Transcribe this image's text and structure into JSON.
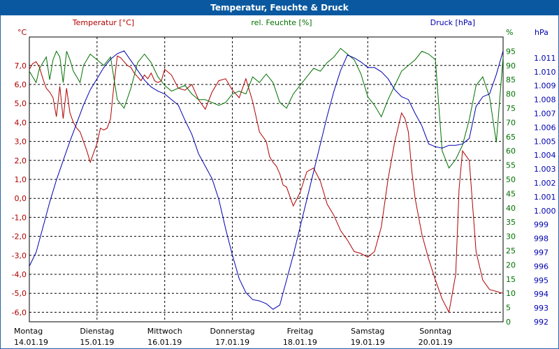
{
  "window": {
    "title": "Temperatur, Feuchte & Druck"
  },
  "chart_data": {
    "type": "line",
    "title": "Temperatur, Feuchte & Druck",
    "colors": {
      "temperature": "#b00000",
      "humidity": "#007000",
      "pressure": "#0000b0",
      "grid": "#000000"
    },
    "axes": {
      "temperature": {
        "unit": "°C",
        "label": "Temperatur [°C]",
        "ylim": [
          -6.5,
          8.5
        ],
        "ticks": [
          "7,0",
          "6,0",
          "5,0",
          "4,0",
          "3,0",
          "2,0",
          "1,0",
          "0,0",
          "-1,0",
          "-2,0",
          "-3,0",
          "-4,0",
          "-5,0",
          "-6,0"
        ],
        "tick_values": [
          7,
          6,
          5,
          4,
          3,
          2,
          1,
          0,
          -1,
          -2,
          -3,
          -4,
          -5,
          -6
        ]
      },
      "humidity": {
        "unit": "%",
        "label": "rel. Feuchte [%]",
        "ylim": [
          0,
          100
        ],
        "ticks": [
          "95",
          "90",
          "85",
          "80",
          "75",
          "70",
          "65",
          "60",
          "55",
          "50",
          "45",
          "40",
          "35",
          "30",
          "25",
          "20",
          "15",
          "10",
          "5",
          "0"
        ],
        "tick_values": [
          95,
          90,
          85,
          80,
          75,
          70,
          65,
          60,
          55,
          50,
          45,
          40,
          35,
          30,
          25,
          20,
          15,
          10,
          5,
          0
        ]
      },
      "pressure": {
        "unit": "hPa",
        "label": "Druck [hPa]",
        "ylim": [
          992,
          1012.5
        ],
        "ticks": [
          "1.011",
          "1.010",
          "1.009",
          "1.008",
          "1.007",
          "1.006",
          "1.005",
          "1.004",
          "1.003",
          "1.002",
          "1.001",
          "1.000",
          "999",
          "998",
          "997",
          "996",
          "995",
          "994",
          "993",
          "992"
        ],
        "tick_values": [
          1011,
          1010,
          1009,
          1008,
          1007,
          1006,
          1005,
          1004,
          1003,
          1002,
          1001,
          1000,
          999,
          998,
          997,
          996,
          995,
          994,
          993,
          992
        ]
      }
    },
    "x_range": [
      0,
      7
    ],
    "x_categories": [
      {
        "day": "Montag",
        "date": "14.01.19"
      },
      {
        "day": "Dienstag",
        "date": "15.01.19"
      },
      {
        "day": "Mittwoch",
        "date": "16.01.19"
      },
      {
        "day": "Donnerstag",
        "date": "17.01.19"
      },
      {
        "day": "Freitag",
        "date": "18.01.19"
      },
      {
        "day": "Samstag",
        "date": "19.01.19"
      },
      {
        "day": "Sonntag",
        "date": "20.01.19"
      }
    ],
    "series": [
      {
        "name": "Temperatur",
        "axis": "temperature",
        "color": "#b00000",
        "x": [
          0,
          0.05,
          0.1,
          0.15,
          0.2,
          0.25,
          0.3,
          0.35,
          0.4,
          0.45,
          0.5,
          0.55,
          0.6,
          0.65,
          0.7,
          0.75,
          0.8,
          0.85,
          0.9,
          0.95,
          1.0,
          1.05,
          1.1,
          1.15,
          1.2,
          1.25,
          1.3,
          1.35,
          1.4,
          1.45,
          1.5,
          1.55,
          1.6,
          1.65,
          1.7,
          1.75,
          1.8,
          1.85,
          1.9,
          1.95,
          2.0,
          2.1,
          2.2,
          2.3,
          2.4,
          2.5,
          2.6,
          2.7,
          2.8,
          2.9,
          3.0,
          3.1,
          3.2,
          3.3,
          3.4,
          3.5,
          3.55,
          3.6,
          3.65,
          3.7,
          3.75,
          3.8,
          3.9,
          4.0,
          4.1,
          4.2,
          4.3,
          4.4,
          4.5,
          4.6,
          4.7,
          4.8,
          4.9,
          5.0,
          5.1,
          5.2,
          5.3,
          5.4,
          5.5,
          5.55,
          5.6,
          5.65,
          5.7,
          5.8,
          5.9,
          6.0,
          6.1,
          6.2,
          6.3,
          6.35,
          6.4,
          6.5,
          6.6,
          6.7,
          6.8,
          6.9,
          7.0
        ],
        "values": [
          6.8,
          7.1,
          7.2,
          6.9,
          6.3,
          5.8,
          5.6,
          5.3,
          4.3,
          5.9,
          4.2,
          5.8,
          4.5,
          4.0,
          3.7,
          3.5,
          3.0,
          2.5,
          1.9,
          2.4,
          2.9,
          3.7,
          3.6,
          3.7,
          4.2,
          6.0,
          7.5,
          7.4,
          7.2,
          7.0,
          6.9,
          6.6,
          6.4,
          6.2,
          6.5,
          6.3,
          6.6,
          6.2,
          6.1,
          6.2,
          6.8,
          6.5,
          5.8,
          5.7,
          6.0,
          5.2,
          4.7,
          5.6,
          6.2,
          6.3,
          5.7,
          5.3,
          6.3,
          5.1,
          3.5,
          3.0,
          2.2,
          1.9,
          1.7,
          1.3,
          0.7,
          0.6,
          -0.4,
          0.3,
          1.4,
          1.6,
          0.9,
          -0.3,
          -0.9,
          -1.7,
          -2.2,
          -2.8,
          -2.9,
          -3.1,
          -2.8,
          -1.5,
          1.0,
          3.0,
          4.5,
          4.2,
          3.5,
          1.5,
          0.0,
          -1.9,
          -3.2,
          -4.3,
          -5.3,
          -6.0,
          -4.0,
          0.5,
          2.5,
          2.0,
          -2.8,
          -4.3,
          -4.8,
          -4.9,
          -5.0
        ]
      },
      {
        "name": "rel. Feuchte",
        "axis": "humidity",
        "color": "#007000",
        "x": [
          0,
          0.05,
          0.1,
          0.15,
          0.2,
          0.25,
          0.3,
          0.35,
          0.4,
          0.45,
          0.5,
          0.55,
          0.6,
          0.65,
          0.7,
          0.75,
          0.8,
          0.85,
          0.9,
          0.95,
          1.0,
          1.1,
          1.2,
          1.3,
          1.4,
          1.5,
          1.6,
          1.7,
          1.8,
          1.9,
          2.0,
          2.1,
          2.2,
          2.3,
          2.4,
          2.5,
          2.6,
          2.7,
          2.8,
          2.9,
          3.0,
          3.1,
          3.2,
          3.3,
          3.4,
          3.5,
          3.6,
          3.7,
          3.8,
          3.9,
          4.0,
          4.1,
          4.2,
          4.3,
          4.4,
          4.5,
          4.6,
          4.7,
          4.8,
          4.9,
          5.0,
          5.1,
          5.2,
          5.3,
          5.4,
          5.5,
          5.6,
          5.7,
          5.8,
          5.9,
          6.0,
          6.1,
          6.2,
          6.3,
          6.4,
          6.5,
          6.6,
          6.7,
          6.8,
          6.9,
          7.0
        ],
        "values": [
          88,
          86,
          84,
          89,
          91,
          93,
          85,
          92,
          95,
          93,
          84,
          95,
          92,
          88,
          86,
          84,
          90,
          92,
          94,
          93,
          92,
          90,
          93,
          78,
          75,
          82,
          91,
          94,
          91,
          86,
          83,
          81,
          82,
          83,
          80,
          78,
          78,
          77,
          76,
          77,
          80,
          81,
          80,
          86,
          84,
          87,
          84,
          77,
          75,
          80,
          83,
          86,
          89,
          88,
          91,
          93,
          96,
          94,
          92,
          87,
          79,
          76,
          72,
          78,
          83,
          88,
          90,
          92,
          95,
          94,
          92,
          60,
          54,
          57,
          62,
          71,
          83,
          86,
          79,
          63,
          93
        ]
      },
      {
        "name": "Druck",
        "axis": "pressure",
        "color": "#0000b0",
        "x": [
          0,
          0.1,
          0.2,
          0.3,
          0.4,
          0.5,
          0.6,
          0.7,
          0.8,
          0.9,
          1.0,
          1.1,
          1.2,
          1.3,
          1.4,
          1.5,
          1.6,
          1.7,
          1.8,
          1.9,
          2.0,
          2.1,
          2.2,
          2.3,
          2.4,
          2.5,
          2.6,
          2.7,
          2.8,
          2.9,
          3.0,
          3.1,
          3.2,
          3.3,
          3.4,
          3.5,
          3.6,
          3.7,
          3.8,
          3.9,
          4.0,
          4.1,
          4.2,
          4.3,
          4.4,
          4.5,
          4.6,
          4.7,
          4.8,
          4.9,
          5.0,
          5.1,
          5.2,
          5.3,
          5.4,
          5.5,
          5.6,
          5.7,
          5.8,
          5.9,
          6.0,
          6.1,
          6.2,
          6.3,
          6.4,
          6.5,
          6.6,
          6.7,
          6.8,
          6.9,
          7.0
        ],
        "values": [
          996,
          997,
          998.8,
          1000.6,
          1002.2,
          1003.6,
          1005.0,
          1006.3,
          1007.6,
          1008.7,
          1009.5,
          1010.3,
          1010.9,
          1011.3,
          1011.5,
          1010.8,
          1010.1,
          1009.4,
          1008.9,
          1008.6,
          1008.4,
          1008.0,
          1007.6,
          1006.5,
          1005.5,
          1004.1,
          1003.2,
          1002.3,
          1000.8,
          998.7,
          996.8,
          995.1,
          994.1,
          993.6,
          993.5,
          993.3,
          992.9,
          993.2,
          995.0,
          996.8,
          998.8,
          1000.8,
          1002.8,
          1004.8,
          1006.8,
          1008.6,
          1010.1,
          1011.2,
          1011.0,
          1010.7,
          1010.3,
          1010.3,
          1010.0,
          1009.5,
          1008.7,
          1008.2,
          1008.0,
          1007.0,
          1006.1,
          1004.8,
          1004.6,
          1004.5,
          1004.7,
          1004.7,
          1004.8,
          1005.2,
          1007.5,
          1008.2,
          1008.4,
          1009.8,
          1011.5
        ]
      }
    ]
  }
}
